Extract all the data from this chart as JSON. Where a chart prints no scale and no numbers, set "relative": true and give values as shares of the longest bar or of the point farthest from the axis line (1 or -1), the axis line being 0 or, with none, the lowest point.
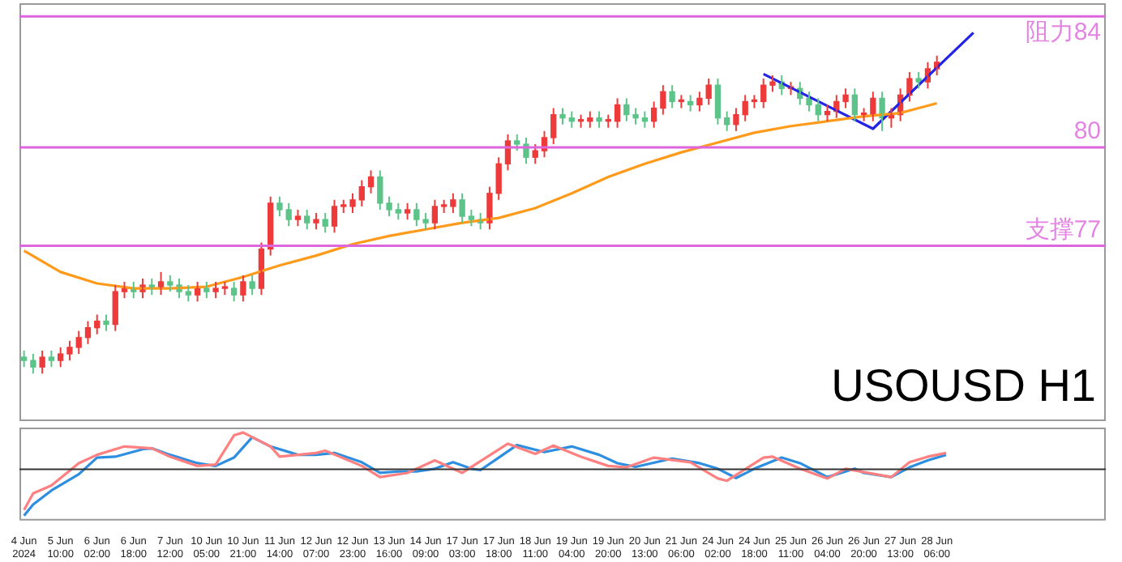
{
  "chart_data": [
    {
      "type": "candlestick",
      "categories": [
        null,
        null,
        null,
        null,
        null,
        null,
        null,
        null,
        null,
        null,
        null,
        null,
        null,
        null,
        null,
        null,
        null,
        null,
        null,
        null,
        null,
        null,
        null,
        null,
        null,
        null,
        null,
        null,
        null,
        null,
        null,
        null,
        null,
        null,
        null,
        null,
        null,
        null,
        null,
        null,
        null,
        null,
        null,
        null,
        null,
        null,
        null,
        null,
        null,
        null,
        null,
        null,
        null,
        null,
        null,
        null,
        null,
        null,
        null,
        null,
        null,
        null,
        null,
        null,
        null,
        null,
        null,
        null,
        null,
        null,
        null,
        null,
        null,
        null,
        null,
        null,
        null,
        null,
        null,
        null,
        null,
        null,
        null,
        null,
        null,
        null,
        null,
        null,
        null,
        null,
        null,
        null,
        null,
        null,
        null,
        null,
        null,
        null,
        null,
        null,
        null,
        null,
        null,
        null,
        null,
        null,
        null,
        null,
        null,
        null,
        null,
        null,
        null,
        null,
        null,
        null,
        null,
        null,
        null
      ],
      "ohlc": [
        [
          73.6,
          73.8,
          73.3,
          73.5
        ],
        [
          73.5,
          73.7,
          73.1,
          73.3
        ],
        [
          73.3,
          73.8,
          73.1,
          73.6
        ],
        [
          73.6,
          73.8,
          73.3,
          73.5
        ],
        [
          73.5,
          73.9,
          73.3,
          73.7
        ],
        [
          73.7,
          74.1,
          73.5,
          73.9
        ],
        [
          73.9,
          74.4,
          73.7,
          74.2
        ],
        [
          74.2,
          74.7,
          74.0,
          74.5
        ],
        [
          74.5,
          74.9,
          74.3,
          74.7
        ],
        [
          74.7,
          74.9,
          74.4,
          74.6
        ],
        [
          74.6,
          75.8,
          74.4,
          75.6
        ],
        [
          75.6,
          75.9,
          75.4,
          75.7
        ],
        [
          75.7,
          75.9,
          75.4,
          75.6
        ],
        [
          75.6,
          76.0,
          75.4,
          75.8
        ],
        [
          75.8,
          76.0,
          75.5,
          75.7
        ],
        [
          75.7,
          76.2,
          75.5,
          75.9
        ],
        [
          75.9,
          76.1,
          75.6,
          75.8
        ],
        [
          75.8,
          76.0,
          75.4,
          75.6
        ],
        [
          75.6,
          75.8,
          75.3,
          75.5
        ],
        [
          75.5,
          75.9,
          75.3,
          75.7
        ],
        [
          75.7,
          75.9,
          75.4,
          75.6
        ],
        [
          75.6,
          75.9,
          75.4,
          75.7
        ],
        [
          75.7,
          75.9,
          75.5,
          75.7
        ],
        [
          75.7,
          75.9,
          75.3,
          75.5
        ],
        [
          75.5,
          76.1,
          75.3,
          75.9
        ],
        [
          75.9,
          76.1,
          75.5,
          75.7
        ],
        [
          75.7,
          77.1,
          75.5,
          76.9
        ],
        [
          76.9,
          78.5,
          76.7,
          78.3
        ],
        [
          78.3,
          78.5,
          77.9,
          78.1
        ],
        [
          78.1,
          78.3,
          77.6,
          77.8
        ],
        [
          77.8,
          78.1,
          77.6,
          77.9
        ],
        [
          77.9,
          78.1,
          77.5,
          77.7
        ],
        [
          77.7,
          78.0,
          77.5,
          77.8
        ],
        [
          77.8,
          78.0,
          77.4,
          77.6
        ],
        [
          77.6,
          78.4,
          77.4,
          78.2
        ],
        [
          78.2,
          78.4,
          78.0,
          78.2
        ],
        [
          78.2,
          78.6,
          78.0,
          78.4
        ],
        [
          78.4,
          79.0,
          78.2,
          78.8
        ],
        [
          78.8,
          79.3,
          78.6,
          79.1
        ],
        [
          79.1,
          79.3,
          78.1,
          78.3
        ],
        [
          78.3,
          78.5,
          77.9,
          78.1
        ],
        [
          78.1,
          78.3,
          77.8,
          78.0
        ],
        [
          78.0,
          78.3,
          77.8,
          78.1
        ],
        [
          78.1,
          78.3,
          77.6,
          77.8
        ],
        [
          77.8,
          78.0,
          77.5,
          77.7
        ],
        [
          77.7,
          78.4,
          77.5,
          78.2
        ],
        [
          78.2,
          78.4,
          78.0,
          78.2
        ],
        [
          78.2,
          78.6,
          78.0,
          78.4
        ],
        [
          78.4,
          78.6,
          77.7,
          77.9
        ],
        [
          77.9,
          78.1,
          77.6,
          77.8
        ],
        [
          77.8,
          78.0,
          77.5,
          77.7
        ],
        [
          77.7,
          78.8,
          77.5,
          78.6
        ],
        [
          78.6,
          79.7,
          78.4,
          79.5
        ],
        [
          79.5,
          80.4,
          79.3,
          80.2
        ],
        [
          80.2,
          80.4,
          79.9,
          80.1
        ],
        [
          80.1,
          80.3,
          79.5,
          79.7
        ],
        [
          79.7,
          80.1,
          79.5,
          79.9
        ],
        [
          79.9,
          80.5,
          79.7,
          80.3
        ],
        [
          80.3,
          81.2,
          80.1,
          81.0
        ],
        [
          81.0,
          81.2,
          80.7,
          80.9
        ],
        [
          80.9,
          81.1,
          80.6,
          80.8
        ],
        [
          80.8,
          81.0,
          80.6,
          80.8
        ],
        [
          80.8,
          81.1,
          80.6,
          80.9
        ],
        [
          80.9,
          81.1,
          80.6,
          80.8
        ],
        [
          80.8,
          81.0,
          80.6,
          80.8
        ],
        [
          80.8,
          81.5,
          80.6,
          81.3
        ],
        [
          81.3,
          81.5,
          80.8,
          81.0
        ],
        [
          81.0,
          81.2,
          80.7,
          80.9
        ],
        [
          80.9,
          81.1,
          80.6,
          80.8
        ],
        [
          80.8,
          81.4,
          80.6,
          81.2
        ],
        [
          81.2,
          81.9,
          81.0,
          81.7
        ],
        [
          81.7,
          81.9,
          81.2,
          81.4
        ],
        [
          81.4,
          81.6,
          81.2,
          81.4
        ],
        [
          81.4,
          81.6,
          81.1,
          81.3
        ],
        [
          81.3,
          81.7,
          81.1,
          81.5
        ],
        [
          81.5,
          82.1,
          81.3,
          81.9
        ],
        [
          81.9,
          82.1,
          80.7,
          80.9
        ],
        [
          80.9,
          81.1,
          80.5,
          80.7
        ],
        [
          80.7,
          81.2,
          80.5,
          81.0
        ],
        [
          81.0,
          81.6,
          80.8,
          81.4
        ],
        [
          81.4,
          81.6,
          81.2,
          81.4
        ],
        [
          81.4,
          82.1,
          81.2,
          81.9
        ],
        [
          81.9,
          82.2,
          81.7,
          82.0
        ],
        [
          82.0,
          82.2,
          81.6,
          81.8
        ],
        [
          81.8,
          82.0,
          81.6,
          81.8
        ],
        [
          81.8,
          82.0,
          81.3,
          81.5
        ],
        [
          81.5,
          81.7,
          81.1,
          81.3
        ],
        [
          81.3,
          81.5,
          80.8,
          81.0
        ],
        [
          81.0,
          81.3,
          80.8,
          81.1
        ],
        [
          81.1,
          81.6,
          80.9,
          81.4
        ],
        [
          81.4,
          81.8,
          81.2,
          81.6
        ],
        [
          81.6,
          81.8,
          80.8,
          81.0
        ],
        [
          81.0,
          81.2,
          80.8,
          81.0
        ],
        [
          81.0,
          81.7,
          80.8,
          81.5
        ],
        [
          81.5,
          81.7,
          80.5,
          80.9
        ],
        [
          80.9,
          81.2,
          80.6,
          81.0
        ],
        [
          81.0,
          81.8,
          80.8,
          81.6
        ],
        [
          81.6,
          82.3,
          81.4,
          82.1
        ],
        [
          82.1,
          82.3,
          81.8,
          82.0
        ],
        [
          82.0,
          82.6,
          81.8,
          82.4
        ],
        [
          82.4,
          82.8,
          82.2,
          82.6
        ],
        null,
        null,
        null,
        null,
        null,
        null,
        null,
        null,
        null,
        null,
        null,
        null,
        null,
        null,
        null,
        null,
        null,
        null
      ],
      "series": [
        {
          "type": "line",
          "color": "#ff9a1a",
          "values": [
            76.85,
            null,
            null,
            null,
            76.2,
            null,
            null,
            null,
            75.85,
            null,
            null,
            null,
            75.7,
            null,
            null,
            null,
            75.7,
            null,
            null,
            null,
            75.75,
            null,
            null,
            null,
            76.05,
            null,
            null,
            null,
            76.4,
            null,
            null,
            null,
            76.7,
            null,
            null,
            null,
            77.05,
            null,
            null,
            null,
            77.3,
            null,
            null,
            null,
            77.5,
            null,
            null,
            null,
            77.7,
            null,
            null,
            null,
            77.85,
            null,
            null,
            null,
            78.15,
            null,
            null,
            null,
            78.6,
            null,
            null,
            null,
            79.1,
            null,
            null,
            null,
            79.5,
            null,
            null,
            null,
            79.85,
            null,
            null,
            null,
            80.15,
            null,
            null,
            null,
            80.45,
            null,
            null,
            null,
            80.65,
            null,
            null,
            null,
            80.8,
            null,
            null,
            null,
            80.95,
            null,
            null,
            null,
            81.05,
            null,
            null,
            null,
            81.35,
            null,
            null,
            null,
            null,
            null,
            null,
            null,
            null,
            null,
            null,
            null,
            null,
            null,
            null,
            null,
            null,
            null,
            null
          ]
        },
        {
          "type": "line",
          "color": "#2424e6",
          "values": [
            null,
            null,
            null,
            null,
            null,
            null,
            null,
            null,
            null,
            null,
            null,
            null,
            null,
            null,
            null,
            null,
            null,
            null,
            null,
            null,
            null,
            null,
            null,
            null,
            null,
            null,
            null,
            null,
            null,
            null,
            null,
            null,
            null,
            null,
            null,
            null,
            null,
            null,
            null,
            null,
            null,
            null,
            null,
            null,
            null,
            null,
            null,
            null,
            null,
            null,
            null,
            null,
            null,
            null,
            null,
            null,
            null,
            null,
            null,
            null,
            null,
            null,
            null,
            null,
            null,
            null,
            null,
            null,
            null,
            null,
            null,
            null,
            null,
            null,
            null,
            null,
            null,
            null,
            null,
            null,
            null,
            82.24,
            null,
            null,
            null,
            null,
            null,
            null,
            null,
            null,
            null,
            null,
            null,
            80.57,
            null,
            null,
            null,
            null,
            null,
            null,
            null,
            null,
            null,
            null,
            83.5,
            null,
            null,
            null,
            null,
            null,
            null,
            null,
            null,
            null,
            null,
            null,
            null,
            null,
            null
          ]
        }
      ],
      "ylim": [
        71.65,
        84.4
      ],
      "tick_labels": false,
      "ref_lines": [
        {
          "axis": "y",
          "value": 84,
          "label": "阻力84",
          "color": "#dd66dd"
        },
        {
          "axis": "y",
          "value": 80,
          "label": "80",
          "color": "#dd66dd"
        },
        {
          "axis": "y",
          "value": 77,
          "label": "支撑77",
          "color": "#dd66dd"
        }
      ],
      "annotations": [
        "USOUSD H1"
      ]
    },
    {
      "type": "line",
      "relative": true,
      "tick_labels": "x",
      "categories": [
        "4 Jun 2024",
        null,
        null,
        null,
        "5 Jun 10:00",
        null,
        null,
        null,
        "6 Jun 02:00",
        null,
        null,
        null,
        "6 Jun 18:00",
        null,
        null,
        null,
        "7 Jun 12:00",
        null,
        null,
        null,
        "10 Jun 05:00",
        null,
        null,
        null,
        "10 Jun 21:00",
        null,
        null,
        null,
        "11 Jun 14:00",
        null,
        null,
        null,
        "12 Jun 07:00",
        null,
        null,
        null,
        "12 Jun 23:00",
        null,
        null,
        null,
        "13 Jun 16:00",
        null,
        null,
        null,
        "14 Jun 09:00",
        null,
        null,
        null,
        "17 Jun 03:00",
        null,
        null,
        null,
        "17 Jun 18:00",
        null,
        null,
        null,
        "18 Jun 11:00",
        null,
        null,
        null,
        "19 Jun 04:00",
        null,
        null,
        null,
        "19 Jun 20:00",
        null,
        null,
        null,
        "20 Jun 13:00",
        null,
        null,
        null,
        "21 Jun 06:00",
        null,
        null,
        null,
        "24 Jun 02:00",
        null,
        null,
        null,
        "24 Jun 18:00",
        null,
        null,
        null,
        "25 Jun 11:00",
        null,
        null,
        null,
        "26 Jun 04:00",
        null,
        null,
        null,
        "26 Jun 20:00",
        null,
        null,
        null,
        "27 Jun 13:00",
        null,
        null,
        null,
        "28 Jun 06:00",
        null,
        null,
        null,
        null,
        null,
        null,
        null,
        null,
        null,
        null,
        null,
        null,
        null,
        null,
        null,
        null,
        null,
        null
      ],
      "series": [
        {
          "color": "#ff8080",
          "values": [
            -0.88,
            -0.52,
            null,
            -0.35,
            null,
            null,
            0.13,
            null,
            0.31,
            null,
            null,
            0.49,
            null,
            null,
            0.45,
            null,
            0.27,
            null,
            null,
            0.07,
            null,
            0.1,
            null,
            0.73,
            0.79,
            null,
            null,
            0.49,
            0.27,
            null,
            null,
            null,
            0.35,
            0.4,
            null,
            null,
            null,
            0.07,
            null,
            -0.17,
            null,
            null,
            -0.08,
            null,
            null,
            0.19,
            null,
            null,
            -0.08,
            null,
            null,
            null,
            null,
            0.55,
            null,
            null,
            0.33,
            null,
            0.51,
            null,
            null,
            0.27,
            null,
            null,
            0.07,
            null,
            0.04,
            null,
            null,
            0.25,
            null,
            null,
            null,
            0.15,
            null,
            null,
            -0.2,
            -0.25,
            null,
            null,
            null,
            0.25,
            0.27,
            null,
            null,
            0.01,
            null,
            null,
            -0.2,
            null,
            0.01,
            null,
            null,
            null,
            null,
            -0.17,
            null,
            0.15,
            null,
            0.27,
            null,
            0.35,
            null,
            null,
            null,
            null,
            null,
            null,
            null,
            null,
            null,
            null,
            null,
            null,
            null,
            null,
            null,
            null,
            null
          ]
        },
        {
          "color": "#2e8ee0",
          "values": [
            -1,
            -0.76,
            null,
            -0.46,
            null,
            null,
            -0.11,
            null,
            0.25,
            null,
            0.27,
            null,
            null,
            0.43,
            0.45,
            null,
            0.31,
            null,
            null,
            0.13,
            null,
            0.07,
            null,
            0.25,
            null,
            0.69,
            null,
            0.49,
            null,
            null,
            0.31,
            null,
            0.31,
            null,
            0.35,
            null,
            null,
            0.15,
            null,
            -0.08,
            null,
            -0.05,
            null,
            -0.05,
            null,
            0.01,
            null,
            0.15,
            null,
            0.01,
            -0.02,
            null,
            0.25,
            null,
            0.52,
            null,
            null,
            0.37,
            null,
            null,
            0.49,
            null,
            null,
            0.31,
            null,
            0.13,
            null,
            0.05,
            null,
            null,
            null,
            0.23,
            null,
            null,
            0.13,
            null,
            0.01,
            null,
            -0.19,
            null,
            0.01,
            null,
            null,
            0.25,
            null,
            0.13,
            null,
            null,
            -0.17,
            null,
            null,
            0.01,
            -0.08,
            null,
            null,
            -0.17,
            null,
            0.04,
            null,
            0.19,
            null,
            0.31,
            null,
            null,
            null,
            null,
            null,
            null,
            null,
            null,
            null,
            null,
            null,
            null,
            null,
            null,
            null,
            null,
            null
          ]
        }
      ]
    }
  ]
}
